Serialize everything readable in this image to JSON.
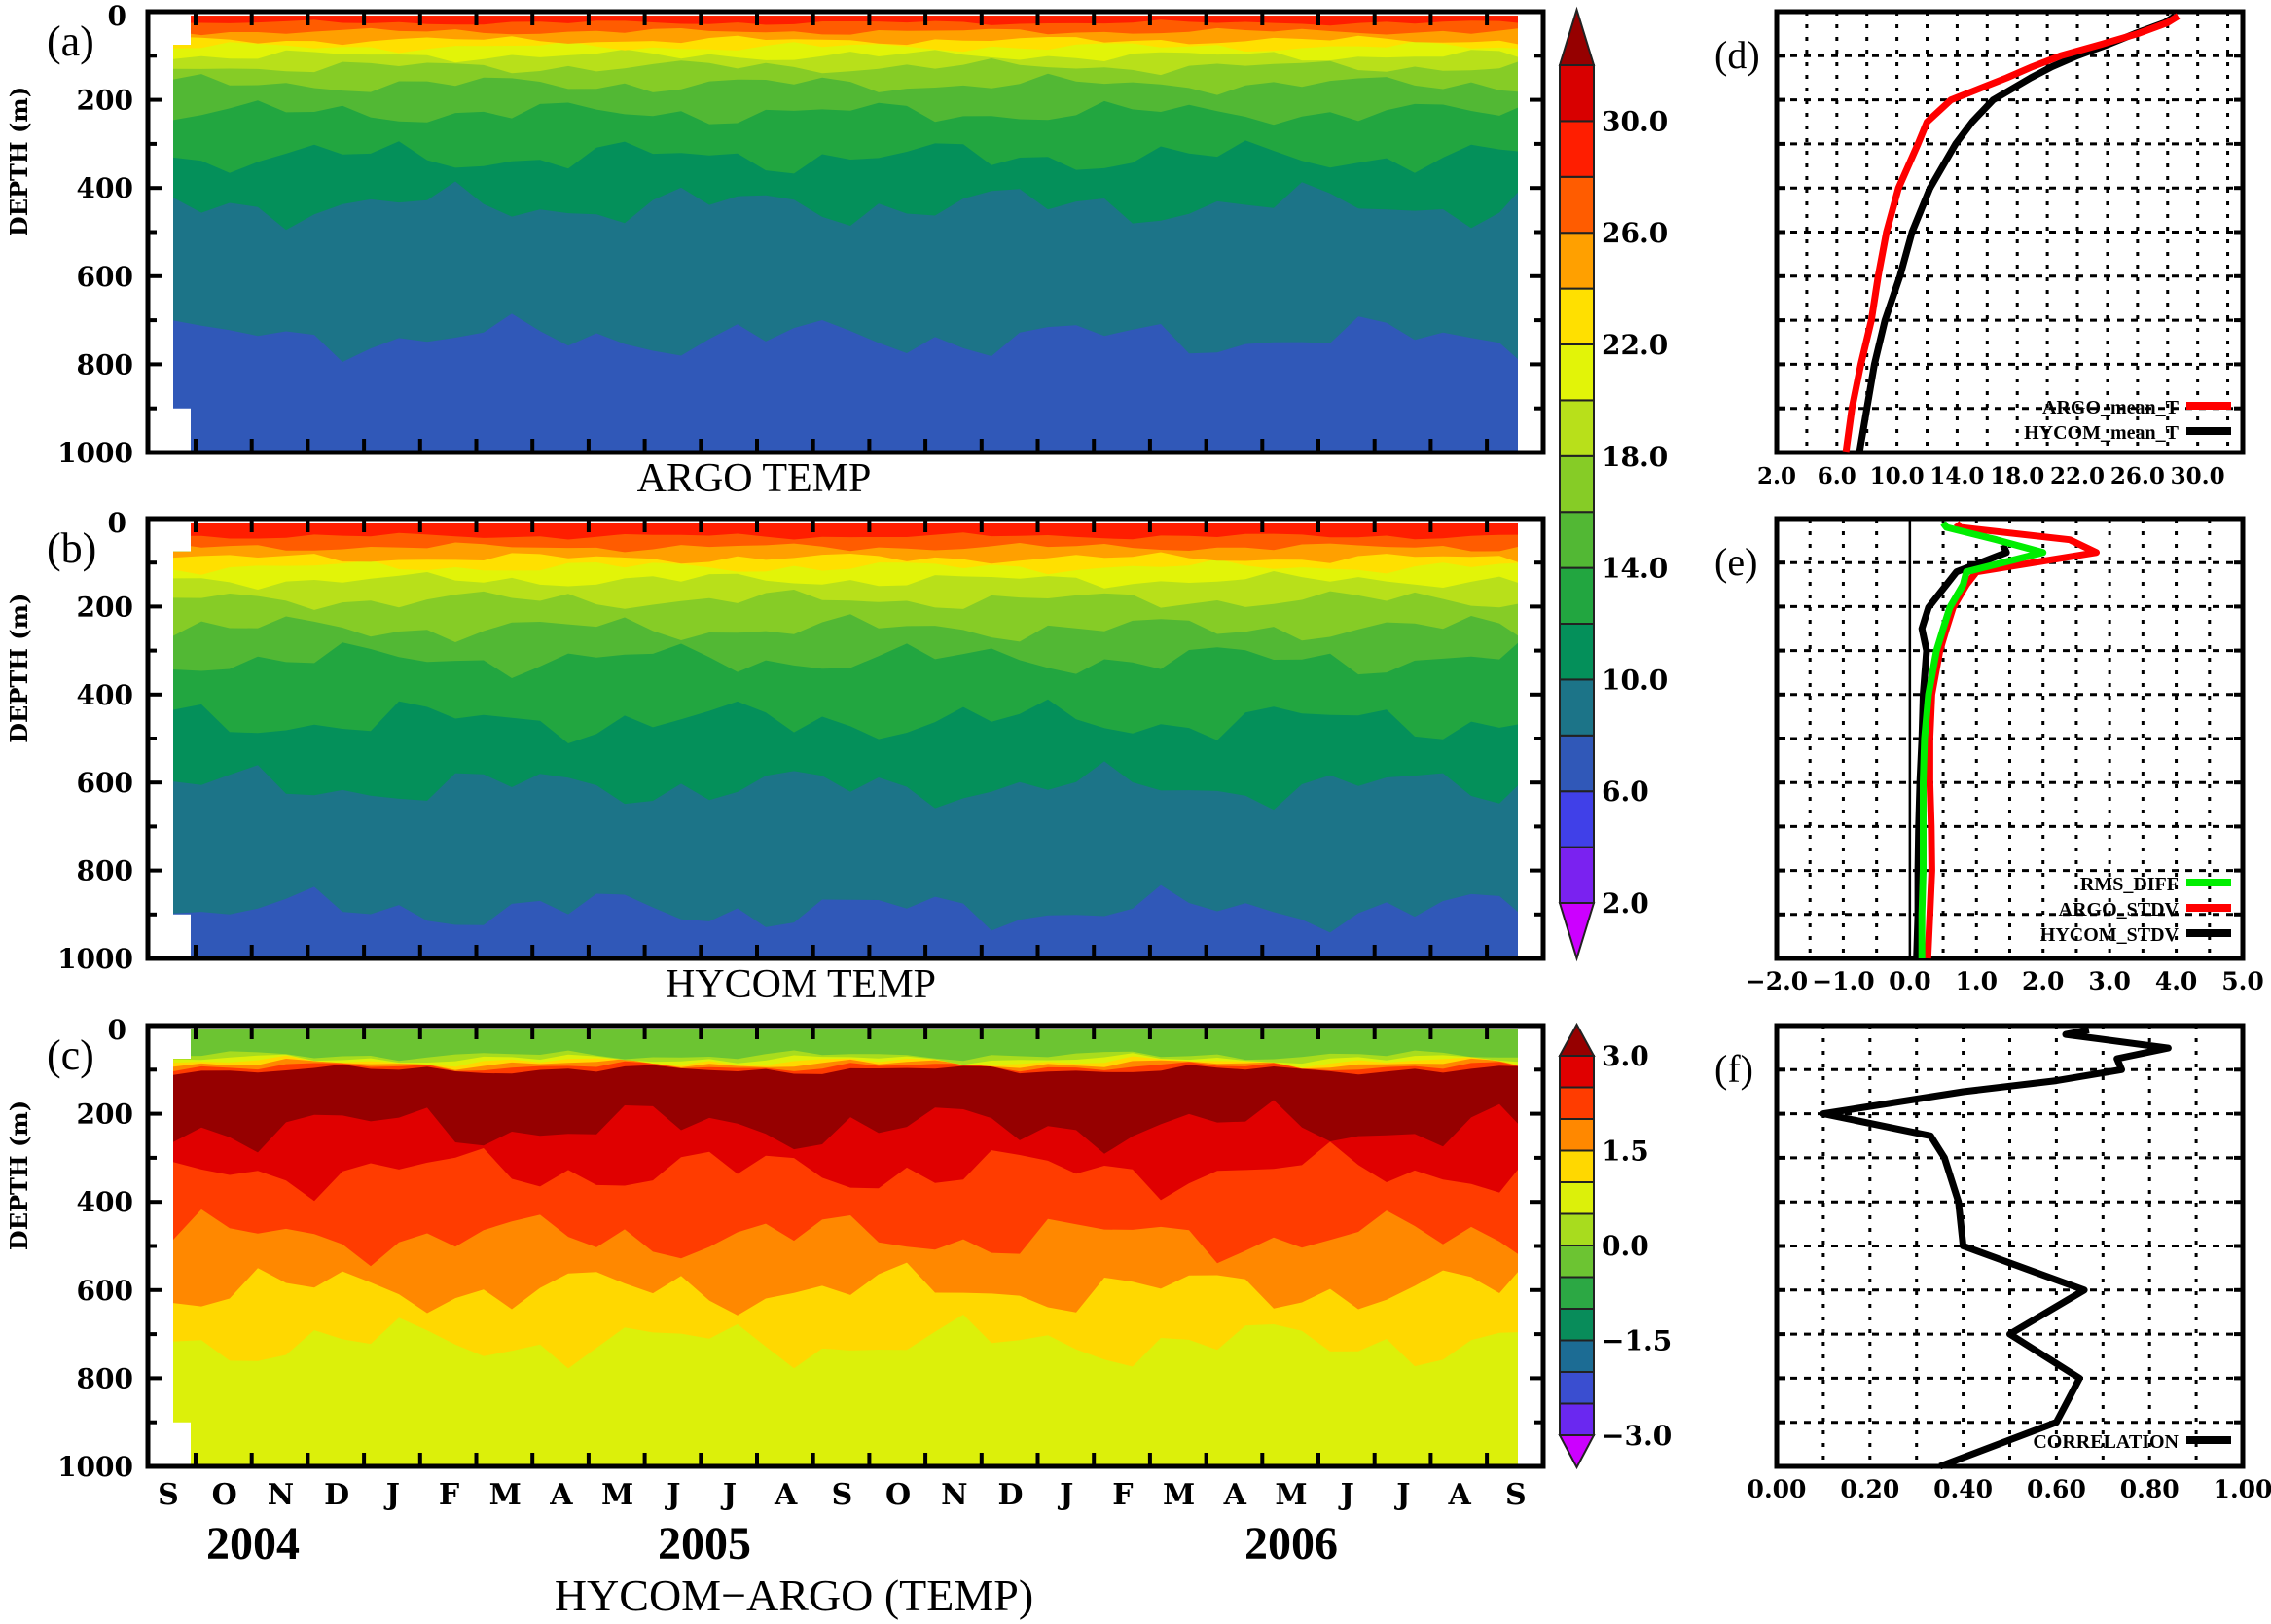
{
  "colorbars": [
    {
      "levels": [
        2,
        4,
        6,
        8,
        10,
        12,
        14,
        16,
        18,
        20,
        22,
        24,
        26,
        28,
        30,
        32
      ],
      "colors": [
        "#7a22f0",
        "#4040e8",
        "#3058b8",
        "#1c7488",
        "#04905a",
        "#22a640",
        "#52b834",
        "#86cc26",
        "#b8e01a",
        "#e2f408",
        "#ffe000",
        "#ffa000",
        "#ff5c00",
        "#ff1e00",
        "#d80000"
      ],
      "under_color": "#cc00ff",
      "over_color": "#960000",
      "tick_values": [
        2,
        6,
        10,
        14,
        18,
        22,
        26,
        30
      ],
      "tick_labels": [
        "2.0",
        "6.0",
        "10.0",
        "14.0",
        "18.0",
        "22.0",
        "26.0",
        "30.0"
      ]
    },
    {
      "levels": [
        -3,
        -2.5,
        -2,
        -1.5,
        -1,
        -0.5,
        0,
        0.5,
        1,
        1.5,
        2,
        2.5,
        3
      ],
      "colors": [
        "#6a28f0",
        "#3a4ed0",
        "#1c6c94",
        "#088c5a",
        "#2ca844",
        "#6cc432",
        "#a8dc1e",
        "#dcf00a",
        "#ffd800",
        "#ff8800",
        "#ff3c00",
        "#e00000"
      ],
      "under_color": "#cc00ff",
      "over_color": "#960000",
      "tick_values": [
        -3,
        -1.5,
        0,
        1.5,
        3
      ],
      "tick_labels": [
        "−3.0",
        "−1.5",
        "0.0",
        "1.5",
        "3.0"
      ]
    }
  ],
  "chart_data": [
    {
      "type": "heatmap",
      "panel_label": "(a)",
      "title": "ARGO TEMP",
      "ylabel": "DEPTH (m)",
      "ylim": [
        1000,
        0
      ],
      "yticks": [
        "0",
        "200",
        "400",
        "600",
        "800",
        "1000"
      ],
      "colorbar": 0,
      "isoline_depths_m": [
        [
          8,
          740
        ],
        [
          10,
          440
        ],
        [
          12,
          330
        ],
        [
          14,
          230
        ],
        [
          16,
          165
        ],
        [
          18,
          125
        ],
        [
          20,
          100
        ],
        [
          22,
          80
        ],
        [
          24,
          65
        ],
        [
          26,
          45
        ],
        [
          28,
          25
        ]
      ]
    },
    {
      "type": "heatmap",
      "panel_label": "(b)",
      "title": "HYCOM TEMP",
      "ylabel": "DEPTH (m)",
      "ylim": [
        1000,
        0
      ],
      "yticks": [
        "0",
        "200",
        "400",
        "600",
        "800",
        "1000"
      ],
      "colorbar": 0,
      "isoline_depths_m": [
        [
          8,
          890
        ],
        [
          10,
          610
        ],
        [
          12,
          460
        ],
        [
          14,
          320
        ],
        [
          16,
          250
        ],
        [
          18,
          185
        ],
        [
          20,
          140
        ],
        [
          22,
          110
        ],
        [
          24,
          90
        ],
        [
          26,
          65
        ],
        [
          28,
          40
        ]
      ]
    },
    {
      "type": "heatmap",
      "panel_label": "(c)",
      "title": "HYCOM−ARGO (TEMP)",
      "ylabel": "DEPTH (m)",
      "ylim": [
        1000,
        0
      ],
      "yticks": [
        "0",
        "200",
        "400",
        "600",
        "800",
        "1000"
      ],
      "xticks": [
        "S",
        "O",
        "N",
        "D",
        "J",
        "F",
        "M",
        "A",
        "M",
        "J",
        "J",
        "A",
        "S",
        "O",
        "N",
        "D",
        "J",
        "F",
        "M",
        "A",
        "M",
        "J",
        "J",
        "A",
        "S"
      ],
      "years": [
        "2004",
        "2005",
        "2006"
      ],
      "colorbar": 1,
      "isoline_depths_m": [
        [
          1.0,
          720
        ],
        [
          1.5,
          600
        ],
        [
          2.0,
          480
        ],
        [
          2.5,
          330
        ],
        [
          3.0,
          230
        ]
      ],
      "near_surface_isoline_depths_m": [
        [
          2.5,
          100
        ],
        [
          2.0,
          93
        ],
        [
          1.5,
          87
        ],
        [
          1.0,
          82
        ],
        [
          0.5,
          76
        ],
        [
          0.0,
          68
        ]
      ]
    },
    {
      "type": "line",
      "panel_label": "(d)",
      "xlim": [
        2,
        33
      ],
      "ylim": [
        1000,
        0
      ],
      "xticks": [
        2,
        6,
        10,
        14,
        18,
        22,
        26,
        30
      ],
      "xtick_labels": [
        "2.0",
        "6.0",
        "10.0",
        "14.0",
        "18.0",
        "22.0",
        "26.0",
        "30.0"
      ],
      "grid": true,
      "legend": "bottom-right",
      "series": [
        {
          "name": "ARGO_mean_T",
          "color": "#ff0000",
          "depth": [
            10,
            25,
            50,
            75,
            100,
            125,
            150,
            200,
            250,
            300,
            400,
            500,
            600,
            700,
            800,
            900,
            1000
          ],
          "values": [
            28.7,
            28.0,
            26.0,
            23.5,
            20.9,
            19.0,
            17.3,
            13.6,
            12.0,
            11.4,
            10.1,
            9.3,
            8.75,
            8.3,
            7.6,
            7.0,
            6.6
          ]
        },
        {
          "name": "HYCOM_mean_T",
          "color": "#000000",
          "depth": [
            10,
            25,
            50,
            75,
            100,
            125,
            150,
            200,
            250,
            300,
            400,
            500,
            600,
            700,
            800,
            900,
            1000
          ],
          "values": [
            28.5,
            27.8,
            25.8,
            24.0,
            22.0,
            20.3,
            18.9,
            16.4,
            15.0,
            13.9,
            12.2,
            11.0,
            10.2,
            9.2,
            8.5,
            8.0,
            7.5
          ]
        }
      ]
    },
    {
      "type": "line",
      "panel_label": "(e)",
      "xlim": [
        -2,
        5
      ],
      "ylim": [
        1000,
        0
      ],
      "xticks": [
        -2,
        -1,
        0,
        1,
        2,
        3,
        4,
        5
      ],
      "xtick_labels": [
        "−2.0",
        "−1.0",
        "0.0",
        "1.0",
        "2.0",
        "3.0",
        "4.0",
        "5.0"
      ],
      "grid": true,
      "legend": "bottom-right",
      "series": [
        {
          "name": "RMS_DIFF",
          "color": "#00ee00",
          "depth": [
            10,
            20,
            48,
            77,
            121,
            150,
            202,
            250,
            300,
            400,
            500,
            600,
            700,
            800,
            900,
            1000
          ],
          "values": [
            0.5,
            0.55,
            1.3,
            2.0,
            0.85,
            0.8,
            0.6,
            0.5,
            0.4,
            0.28,
            0.22,
            0.2,
            0.2,
            0.2,
            0.18,
            0.18
          ]
        },
        {
          "name": "ARGO_STDV",
          "color": "#ff0000",
          "depth": [
            10,
            20,
            48,
            77,
            121,
            150,
            202,
            250,
            300,
            400,
            500,
            600,
            700,
            800,
            900,
            1000
          ],
          "values": [
            0.7,
            0.75,
            2.4,
            2.8,
            1.0,
            0.85,
            0.65,
            0.55,
            0.45,
            0.33,
            0.3,
            0.3,
            0.32,
            0.33,
            0.3,
            0.27
          ]
        },
        {
          "name": "HYCOM_STDV",
          "color": "#000000",
          "depth": [
            60,
            77,
            121,
            202,
            250,
            300,
            400,
            500,
            600,
            700,
            800,
            900,
            1000
          ],
          "values": [
            1.4,
            1.45,
            0.7,
            0.28,
            0.18,
            0.25,
            0.2,
            0.18,
            0.15,
            0.13,
            0.12,
            0.12,
            0.1
          ]
        }
      ]
    },
    {
      "type": "line",
      "panel_label": "(f)",
      "xlim": [
        0,
        1
      ],
      "ylim": [
        1000,
        0
      ],
      "xticks": [
        0,
        0.2,
        0.4,
        0.6,
        0.8,
        1.0
      ],
      "xtick_labels": [
        "0.00",
        "0.20",
        "0.40",
        "0.60",
        "0.80",
        "1.00"
      ],
      "grid": true,
      "legend": "bottom-right",
      "series": [
        {
          "name": "CORRELATION",
          "color": "#000000",
          "depth": [
            10,
            20,
            51,
            75,
            100,
            125,
            150,
            200,
            250,
            300,
            400,
            500,
            600,
            700,
            800,
            900,
            1000
          ],
          "values": [
            0.67,
            0.62,
            0.84,
            0.73,
            0.74,
            0.6,
            0.4,
            0.1,
            0.33,
            0.36,
            0.39,
            0.4,
            0.66,
            0.5,
            0.65,
            0.6,
            0.35
          ]
        }
      ]
    }
  ]
}
